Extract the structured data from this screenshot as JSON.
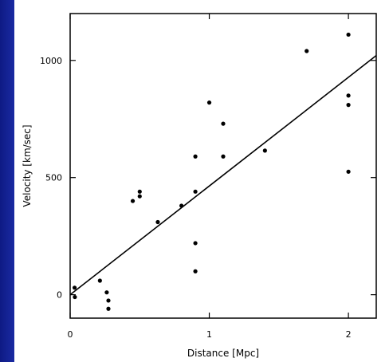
{
  "chart_data": {
    "type": "scatter",
    "title": "",
    "xlabel": "Distance [Mpc]",
    "ylabel": "Velocity [km/sec]",
    "xlim": [
      0,
      2.2
    ],
    "ylim": [
      -100,
      1200
    ],
    "x_ticks": [
      0,
      1,
      2
    ],
    "x_tick_labels": [
      "0",
      "1",
      "2"
    ],
    "y_ticks": [
      0,
      500,
      1000
    ],
    "y_tick_labels": [
      "0",
      "500",
      "1000"
    ],
    "grid": false,
    "legend": "none",
    "points": [
      {
        "x": 0.032,
        "y": 30
      },
      {
        "x": 0.034,
        "y": -10
      },
      {
        "x": 0.214,
        "y": 60
      },
      {
        "x": 0.263,
        "y": 10
      },
      {
        "x": 0.275,
        "y": -25
      },
      {
        "x": 0.275,
        "y": -60
      },
      {
        "x": 0.45,
        "y": 400
      },
      {
        "x": 0.5,
        "y": 440
      },
      {
        "x": 0.5,
        "y": 420
      },
      {
        "x": 0.63,
        "y": 310
      },
      {
        "x": 0.8,
        "y": 380
      },
      {
        "x": 0.9,
        "y": 590
      },
      {
        "x": 0.9,
        "y": 440
      },
      {
        "x": 0.9,
        "y": 220
      },
      {
        "x": 0.9,
        "y": 100
      },
      {
        "x": 1.0,
        "y": 820
      },
      {
        "x": 1.1,
        "y": 730
      },
      {
        "x": 1.1,
        "y": 590
      },
      {
        "x": 1.4,
        "y": 615
      },
      {
        "x": 1.7,
        "y": 1040
      },
      {
        "x": 2.0,
        "y": 1110
      },
      {
        "x": 2.0,
        "y": 850
      },
      {
        "x": 2.0,
        "y": 810
      },
      {
        "x": 2.0,
        "y": 525
      }
    ],
    "fit_line": {
      "slope": 464,
      "intercept": 0
    },
    "colors": {
      "points": "#000000",
      "line": "#000000",
      "background": "#ffffff",
      "slide_background": "#1f2fa8"
    }
  }
}
